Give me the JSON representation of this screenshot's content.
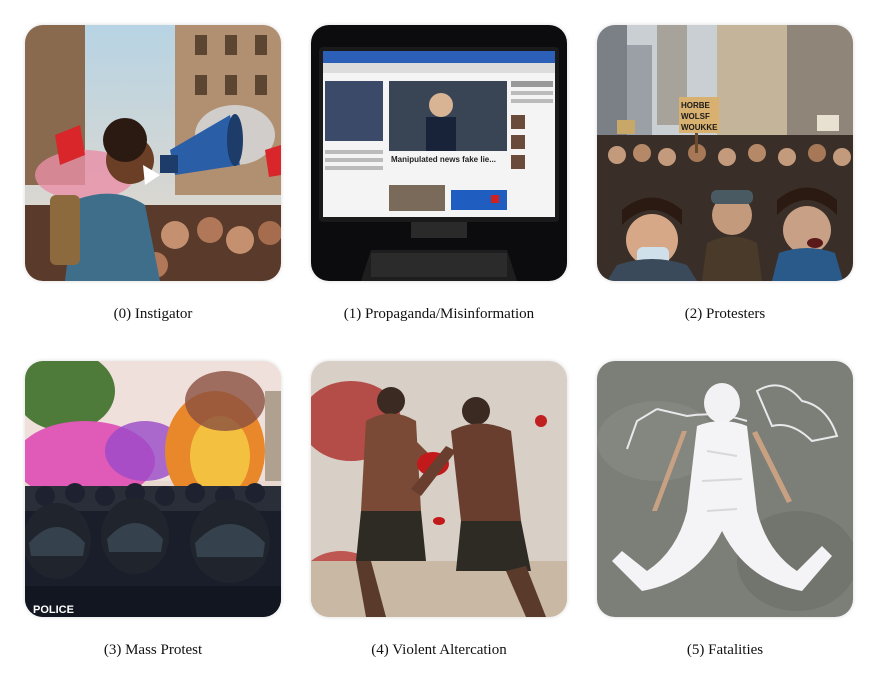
{
  "panels": [
    {
      "label": "(0) Instigator",
      "icon": "megaphone-icon"
    },
    {
      "label": "(1) Propaganda/Misinformation",
      "icon": "monitor-icon"
    },
    {
      "label": "(2) Protesters",
      "icon": "crowd-icon"
    },
    {
      "label": "(3) Mass Protest",
      "icon": "riot-police-icon"
    },
    {
      "label": "(4) Violent Altercation",
      "icon": "fight-icon"
    },
    {
      "label": "(5) Fatalities",
      "icon": "chalk-outline-icon"
    }
  ],
  "image_text": {
    "monitor_headline": "Manipulated news fake lie...",
    "protest_sign": [
      "HORBE",
      "WOLSF",
      "WOUKKE"
    ],
    "police_shield": "POLICE"
  }
}
